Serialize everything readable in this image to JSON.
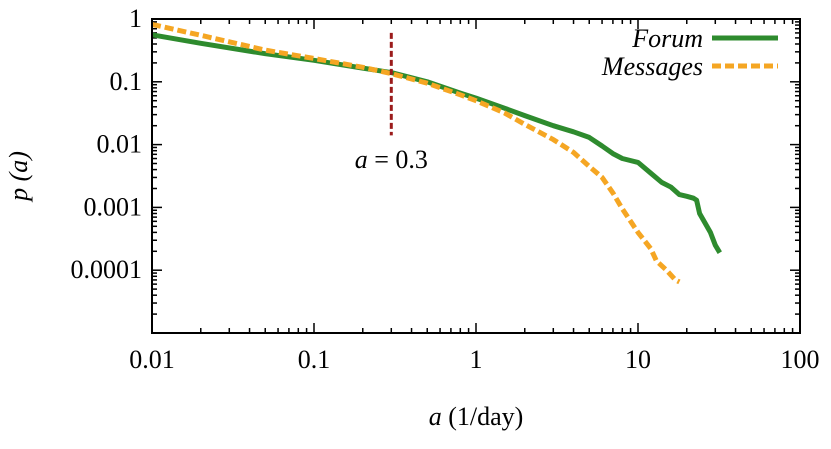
{
  "chart_data": {
    "type": "line",
    "xscale": "log",
    "yscale": "log",
    "xlim": [
      0.01,
      100
    ],
    "ylim": [
      1e-05,
      1
    ],
    "xlabel_var": "a",
    "xlabel_unit": " (1/day)",
    "ylabel_var": "p",
    "ylabel_arg": " (a)",
    "x_ticks": [
      {
        "value": 0.01,
        "label": "0.01"
      },
      {
        "value": 0.1,
        "label": "0.1"
      },
      {
        "value": 1,
        "label": "1"
      },
      {
        "value": 10,
        "label": "10"
      },
      {
        "value": 100,
        "label": "100"
      }
    ],
    "y_ticks": [
      {
        "value": 1,
        "label": "1"
      },
      {
        "value": 0.1,
        "label": "0.1"
      },
      {
        "value": 0.01,
        "label": "0.01"
      },
      {
        "value": 0.001,
        "label": "0.001"
      },
      {
        "value": 0.0001,
        "label": "0.0001"
      }
    ],
    "grid": false,
    "legend_position": "top-right",
    "series": [
      {
        "name": "Forum",
        "color": "#2e8b2e",
        "dash": "solid",
        "points": [
          [
            0.01,
            0.56
          ],
          [
            0.02,
            0.41
          ],
          [
            0.05,
            0.28
          ],
          [
            0.1,
            0.22
          ],
          [
            0.2,
            0.165
          ],
          [
            0.3,
            0.14
          ],
          [
            0.5,
            0.1
          ],
          [
            0.8,
            0.066
          ],
          [
            1.0,
            0.055
          ],
          [
            1.5,
            0.038
          ],
          [
            2.0,
            0.029
          ],
          [
            3.0,
            0.02
          ],
          [
            4.0,
            0.016
          ],
          [
            5.0,
            0.013
          ],
          [
            6.0,
            0.0095
          ],
          [
            7.0,
            0.0072
          ],
          [
            8.0,
            0.006
          ],
          [
            10.0,
            0.0052
          ],
          [
            12.0,
            0.0035
          ],
          [
            14.0,
            0.0025
          ],
          [
            16.0,
            0.0021
          ],
          [
            18.0,
            0.0016
          ],
          [
            20.0,
            0.0015
          ],
          [
            22.0,
            0.0014
          ],
          [
            23.0,
            0.0013
          ],
          [
            24.0,
            0.0008
          ],
          [
            28.0,
            0.0004
          ],
          [
            30.0,
            0.00025
          ],
          [
            32.0,
            0.00019
          ]
        ]
      },
      {
        "name": "Messages",
        "color": "#f5a623",
        "dash": "dashed",
        "points": [
          [
            0.01,
            0.82
          ],
          [
            0.02,
            0.55
          ],
          [
            0.05,
            0.32
          ],
          [
            0.1,
            0.235
          ],
          [
            0.2,
            0.17
          ],
          [
            0.3,
            0.135
          ],
          [
            0.5,
            0.095
          ],
          [
            0.8,
            0.062
          ],
          [
            1.0,
            0.05
          ],
          [
            1.5,
            0.032
          ],
          [
            2.0,
            0.021
          ],
          [
            3.0,
            0.012
          ],
          [
            4.0,
            0.0075
          ],
          [
            5.0,
            0.0045
          ],
          [
            6.0,
            0.003
          ],
          [
            7.0,
            0.0017
          ],
          [
            8.0,
            0.00095
          ],
          [
            9.0,
            0.0006
          ],
          [
            10.0,
            0.0004
          ],
          [
            12.0,
            0.00022
          ],
          [
            13.0,
            0.00014
          ],
          [
            15.0,
            0.0001
          ],
          [
            17.0,
            7e-05
          ],
          [
            18.0,
            6.5e-05
          ]
        ]
      }
    ],
    "annotation": {
      "label_var": "a",
      "label_rest": " = 0.3",
      "x": 0.3,
      "y_top": 0.6,
      "y_bottom": 0.014,
      "color": "#9b1b1b"
    }
  }
}
